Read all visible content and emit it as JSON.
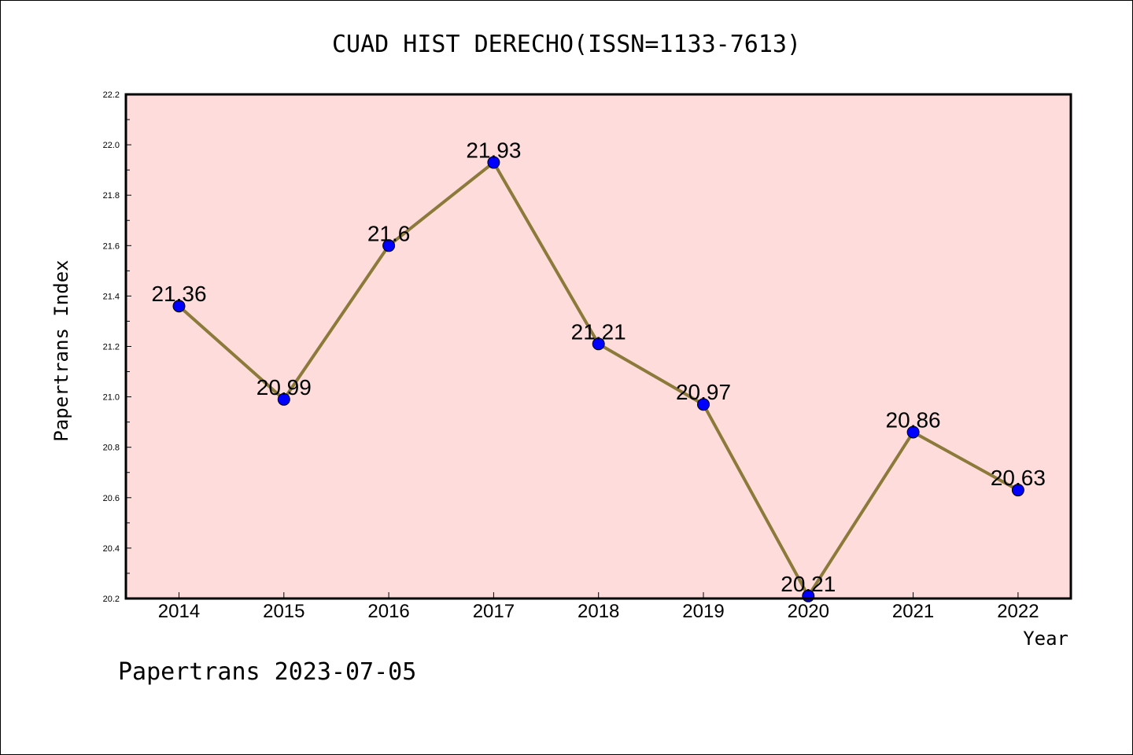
{
  "chart_data": {
    "type": "line",
    "title": "CUAD HIST DERECHO(ISSN=1133-7613)",
    "xlabel": "Year",
    "ylabel": "Papertrans Index",
    "categories": [
      "2014",
      "2015",
      "2016",
      "2017",
      "2018",
      "2019",
      "2020",
      "2021",
      "2022"
    ],
    "values": [
      21.36,
      20.99,
      21.6,
      21.93,
      21.21,
      20.97,
      20.21,
      20.86,
      20.63
    ],
    "data_labels": [
      "21.36",
      "20.99",
      "21.6",
      "21.93",
      "21.21",
      "20.97",
      "20.21",
      "20.86",
      "20.63"
    ],
    "ylim": [
      20.2,
      22.2
    ],
    "yticks": [
      "20.2",
      "20.4",
      "20.6",
      "20.8",
      "21.0",
      "21.2",
      "21.4",
      "21.6",
      "21.8",
      "22.0",
      "22.2"
    ],
    "grid": false,
    "colors": {
      "plot_background": "#ffdcdc",
      "line": "#8b7a3a",
      "marker": "#0000ff"
    }
  },
  "footer": "Papertrans 2023-07-05"
}
